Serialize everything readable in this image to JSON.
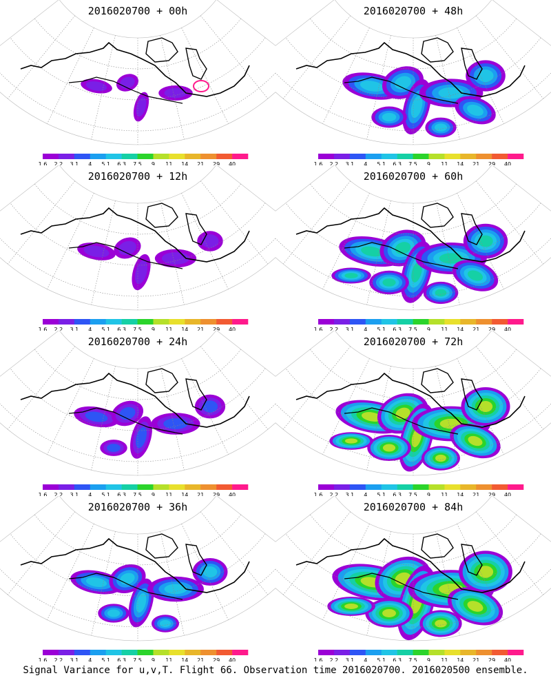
{
  "panels": [
    {
      "title": "2016020700 + 00h",
      "level": 0
    },
    {
      "title": "2016020700 + 48h",
      "level": 4
    },
    {
      "title": "2016020700 + 12h",
      "level": 1
    },
    {
      "title": "2016020700 + 60h",
      "level": 5
    },
    {
      "title": "2016020700 + 24h",
      "level": 2
    },
    {
      "title": "2016020700 + 72h",
      "level": 6
    },
    {
      "title": "2016020700 + 36h",
      "level": 3
    },
    {
      "title": "2016020700 + 84h",
      "level": 7
    }
  ],
  "legend": {
    "colors": [
      "#9b00d6",
      "#7a1fe6",
      "#2e55f5",
      "#1b9ff0",
      "#20c4e6",
      "#15d0a5",
      "#2bd42b",
      "#b5e02a",
      "#e8e02c",
      "#e8b62a",
      "#ee902f",
      "#f25a32",
      "#ff1a8c"
    ],
    "labels": [
      "1.6",
      "2.2",
      "3.1",
      "4",
      "5.1",
      "6.3",
      "7.5",
      "9",
      "11",
      "14",
      "21",
      "29",
      "40"
    ]
  },
  "footer": "Signal Variance for u,v,T. Flight 66. Observation time 2016020700. 2016020500 ensemble."
}
